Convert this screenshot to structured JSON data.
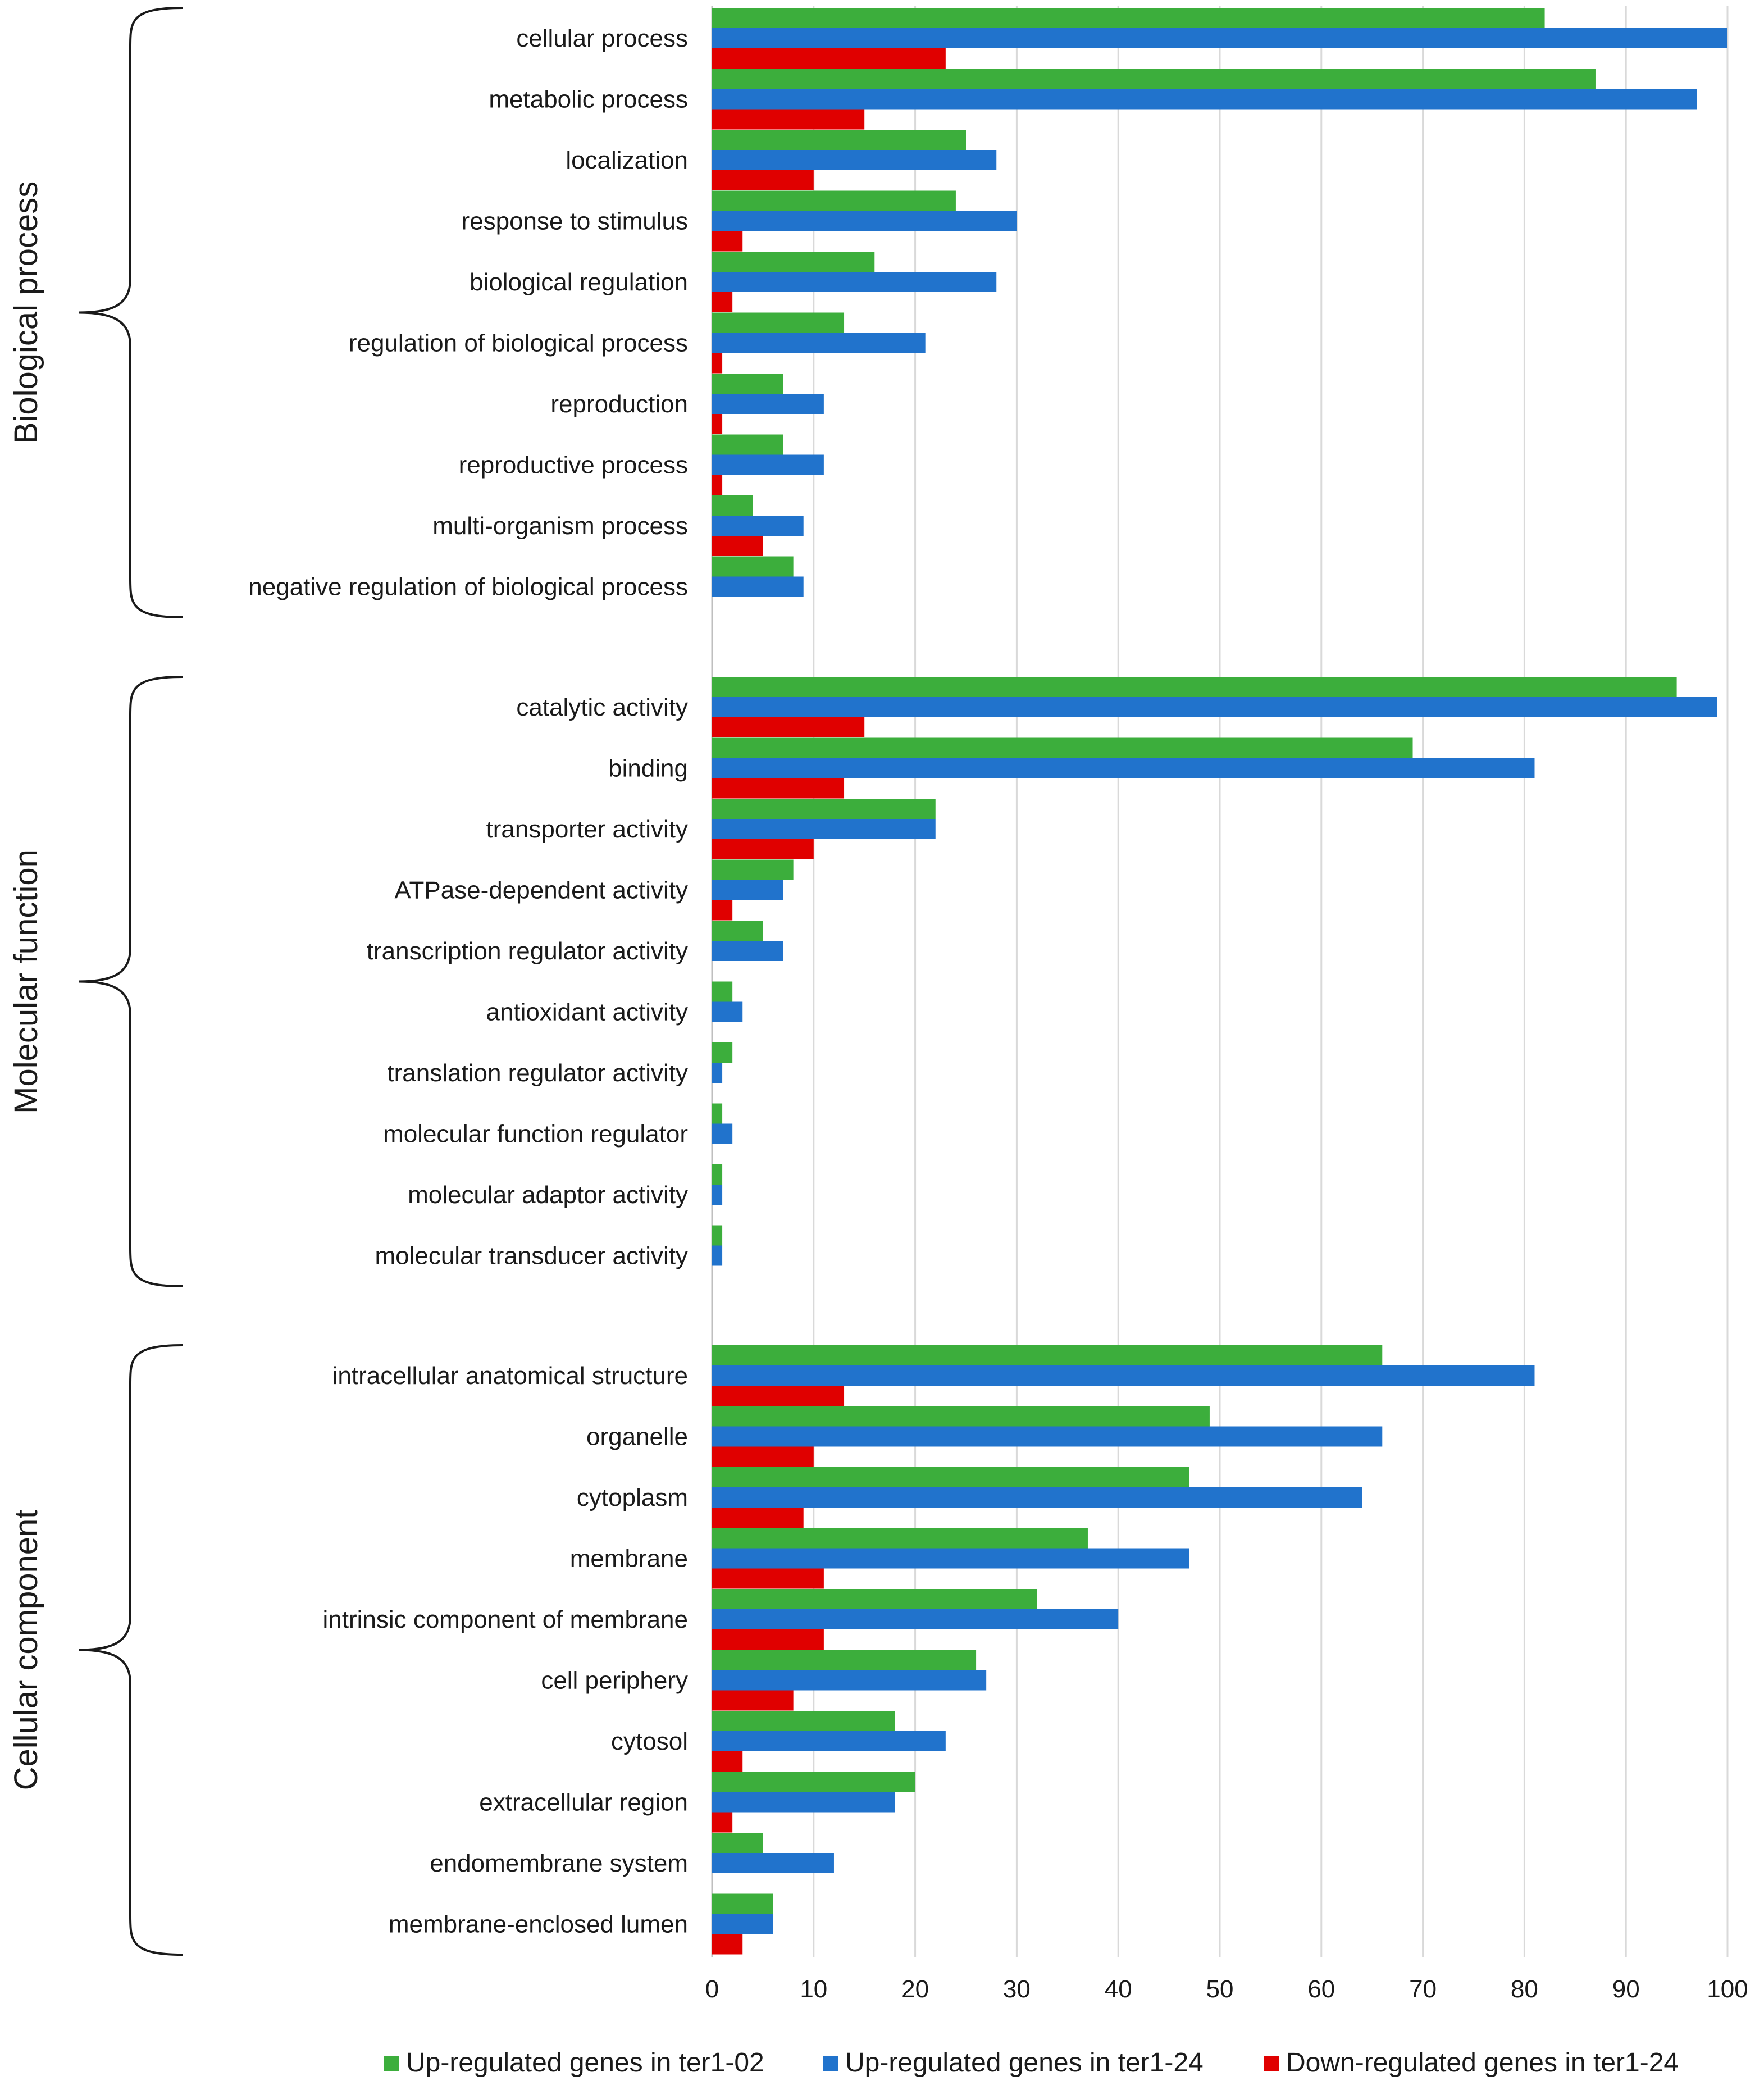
{
  "chart_data": {
    "type": "bar",
    "orientation": "horizontal",
    "xlim": [
      0,
      100
    ],
    "xticks": [
      0,
      10,
      20,
      30,
      40,
      50,
      60,
      70,
      80,
      90,
      100
    ],
    "gridlines": true,
    "legend_position": "bottom",
    "series": [
      {
        "name": "Up-regulated genes in ter1-02",
        "color": "#3cae3c"
      },
      {
        "name": "Up-regulated genes in ter1-24",
        "color": "#2173cc"
      },
      {
        "name": "Down-regulated genes in ter1-24",
        "color": "#e00000"
      }
    ],
    "groups": [
      {
        "name": "Biological process",
        "categories": [
          {
            "label": "cellular process",
            "values": [
              82,
              100,
              23
            ]
          },
          {
            "label": "metabolic process",
            "values": [
              87,
              97,
              15
            ]
          },
          {
            "label": "localization",
            "values": [
              25,
              28,
              10
            ]
          },
          {
            "label": "response to stimulus",
            "values": [
              24,
              30,
              3
            ]
          },
          {
            "label": "biological regulation",
            "values": [
              16,
              28,
              2
            ]
          },
          {
            "label": "regulation of biological process",
            "values": [
              13,
              21,
              1
            ]
          },
          {
            "label": "reproduction",
            "values": [
              7,
              11,
              1
            ]
          },
          {
            "label": "reproductive process",
            "values": [
              7,
              11,
              1
            ]
          },
          {
            "label": "multi-organism process",
            "values": [
              4,
              9,
              5
            ]
          },
          {
            "label": "negative regulation of biological process",
            "values": [
              8,
              9,
              0
            ]
          }
        ]
      },
      {
        "name": "Molecular function",
        "categories": [
          {
            "label": "catalytic activity",
            "values": [
              95,
              99,
              15
            ]
          },
          {
            "label": "binding",
            "values": [
              69,
              81,
              13
            ]
          },
          {
            "label": "transporter activity",
            "values": [
              22,
              22,
              10
            ]
          },
          {
            "label": "ATPase-dependent activity",
            "values": [
              8,
              7,
              2
            ]
          },
          {
            "label": "transcription regulator activity",
            "values": [
              5,
              7,
              0
            ]
          },
          {
            "label": "antioxidant activity",
            "values": [
              2,
              3,
              0
            ]
          },
          {
            "label": "translation regulator activity",
            "values": [
              2,
              1,
              0
            ]
          },
          {
            "label": "molecular function regulator",
            "values": [
              1,
              2,
              0
            ]
          },
          {
            "label": "molecular adaptor activity",
            "values": [
              1,
              1,
              0
            ]
          },
          {
            "label": "molecular transducer activity",
            "values": [
              1,
              1,
              0
            ]
          }
        ]
      },
      {
        "name": "Cellular component",
        "categories": [
          {
            "label": "intracellular anatomical structure",
            "values": [
              66,
              81,
              13
            ]
          },
          {
            "label": "organelle",
            "values": [
              49,
              66,
              10
            ]
          },
          {
            "label": "cytoplasm",
            "values": [
              47,
              64,
              9
            ]
          },
          {
            "label": "membrane",
            "values": [
              37,
              47,
              11
            ]
          },
          {
            "label": "intrinsic component of membrane",
            "values": [
              32,
              40,
              11
            ]
          },
          {
            "label": "cell periphery",
            "values": [
              26,
              27,
              8
            ]
          },
          {
            "label": "cytosol",
            "values": [
              18,
              23,
              3
            ]
          },
          {
            "label": "extracellular region",
            "values": [
              20,
              18,
              2
            ]
          },
          {
            "label": "endomembrane system",
            "values": [
              5,
              12,
              0
            ]
          },
          {
            "label": "membrane-enclosed lumen",
            "values": [
              6,
              6,
              3
            ]
          }
        ]
      }
    ]
  }
}
